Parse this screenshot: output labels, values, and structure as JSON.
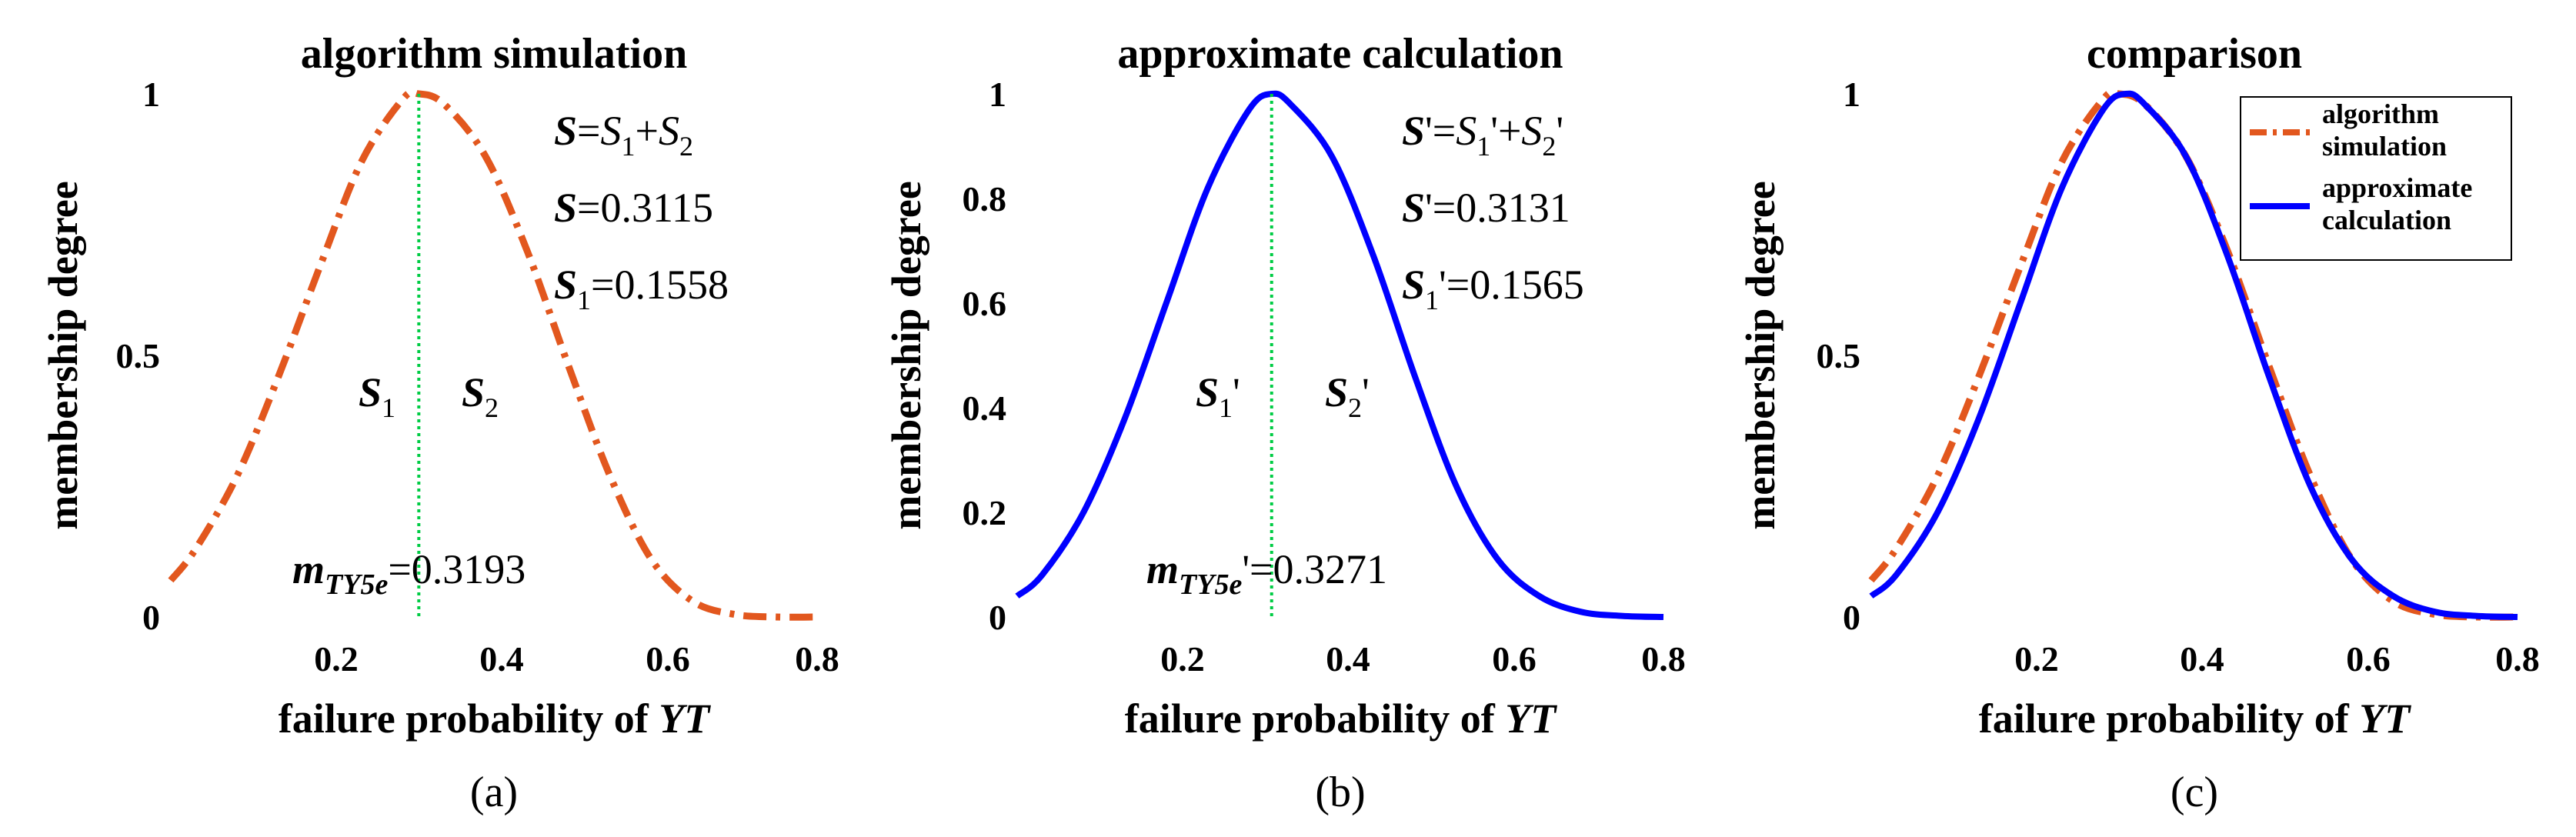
{
  "panels": [
    {
      "title": "algorithm simulation",
      "sublabel": "(a)",
      "xlabel_text": "failure probability of ",
      "xlabel_italic": "YT",
      "ylabel": "membership degree",
      "xticks": [
        "0.2",
        "0.4",
        "0.6",
        "0.8"
      ],
      "yticks": [
        "0",
        "0.5",
        "1"
      ],
      "annotations": {
        "line1": {
          "a": "S",
          "b": "=",
          "c": "S",
          "csub": "1",
          "d": "+",
          "e": "S",
          "esub": "2"
        },
        "line2": {
          "a": "S",
          "b": "=0.3115"
        },
        "line3": {
          "a": "S",
          "asub": "1",
          "b": "=0.1558"
        },
        "s1": {
          "a": "S",
          "sub": "1"
        },
        "s2": {
          "a": "S",
          "sub": "2"
        },
        "m": {
          "a": "m",
          "sub": "TY5e",
          "b": "=0.3193"
        }
      }
    },
    {
      "title": "approximate calculation",
      "sublabel": "(b)",
      "xlabel_text": "failure probability of ",
      "xlabel_italic": "YT",
      "ylabel": "membership degree",
      "xticks": [
        "0.2",
        "0.4",
        "0.6",
        "0.8"
      ],
      "yticks": [
        "0",
        "0.2",
        "0.4",
        "0.6",
        "0.8",
        "1"
      ],
      "annotations": {
        "line1": {
          "a": "S",
          "b": "'=",
          "c": "S",
          "csub": "1",
          "d": "'+",
          "e": "S",
          "esub": "2",
          "f": "'"
        },
        "line2": {
          "a": "S",
          "b": "'=0.3131"
        },
        "line3": {
          "a": "S",
          "asub": "1",
          "b": "'=0.1565"
        },
        "s1": {
          "a": "S",
          "sub": "1",
          "p": "'"
        },
        "s2": {
          "a": "S",
          "sub": "2",
          "p": "'"
        },
        "m": {
          "a": "m",
          "sub": "TY5e",
          "b": "'=0.3271"
        }
      }
    },
    {
      "title": "comparison",
      "sublabel": "(c)",
      "xlabel_text": "failure probability of ",
      "xlabel_italic": "YT",
      "ylabel": "membership degree",
      "xticks": [
        "0.2",
        "0.4",
        "0.6",
        "0.8"
      ],
      "yticks": [
        "0",
        "0.5",
        "1"
      ],
      "legend": [
        {
          "line1": "algorithm",
          "line2": "simulation",
          "color": "#e2571e",
          "style": "dashdot"
        },
        {
          "line1": "approximate",
          "line2": "calculation",
          "color": "#0000ff",
          "style": "solid"
        }
      ]
    }
  ],
  "chart_data": [
    {
      "type": "line",
      "title": "algorithm simulation",
      "xlabel": "failure probability of YT",
      "ylabel": "membership degree",
      "xlim": [
        0.02,
        0.8
      ],
      "ylim": [
        0,
        1
      ],
      "series": [
        {
          "color": "#e2571e",
          "style": "dashdot",
          "x": [
            0.02,
            0.05,
            0.1,
            0.15,
            0.2,
            0.25,
            0.3,
            0.3193,
            0.35,
            0.4,
            0.45,
            0.5,
            0.55,
            0.6,
            0.65,
            0.7,
            0.75,
            0.8
          ],
          "y": [
            0.07,
            0.13,
            0.27,
            0.46,
            0.67,
            0.87,
            0.99,
            1.0,
            0.98,
            0.88,
            0.7,
            0.48,
            0.27,
            0.11,
            0.03,
            0.005,
            0.0,
            0.0
          ]
        }
      ],
      "vline": {
        "x": 0.3193,
        "color": "#00cc44"
      }
    },
    {
      "type": "line",
      "title": "approximate calculation",
      "xlabel": "failure probability of YT",
      "ylabel": "membership degree",
      "xlim": [
        0.02,
        0.8
      ],
      "ylim": [
        0,
        1
      ],
      "series": [
        {
          "color": "#0000ff",
          "style": "solid",
          "x": [
            0.02,
            0.05,
            0.1,
            0.15,
            0.2,
            0.25,
            0.3,
            0.3271,
            0.35,
            0.4,
            0.45,
            0.5,
            0.55,
            0.6,
            0.65,
            0.7,
            0.75,
            0.8
          ],
          "y": [
            0.04,
            0.08,
            0.2,
            0.38,
            0.6,
            0.82,
            0.97,
            1.0,
            0.98,
            0.88,
            0.69,
            0.46,
            0.25,
            0.11,
            0.04,
            0.01,
            0.002,
            0.0
          ]
        }
      ],
      "vline": {
        "x": 0.3271,
        "color": "#00cc44"
      }
    },
    {
      "type": "line",
      "title": "comparison",
      "xlabel": "failure probability of YT",
      "ylabel": "membership degree",
      "xlim": [
        0.02,
        0.8
      ],
      "ylim": [
        0,
        1
      ],
      "series": [
        {
          "name": "algorithm simulation",
          "color": "#e2571e",
          "style": "dashdot",
          "x": [
            0.02,
            0.05,
            0.1,
            0.15,
            0.2,
            0.25,
            0.3,
            0.3193,
            0.35,
            0.4,
            0.45,
            0.5,
            0.55,
            0.6,
            0.65,
            0.7,
            0.75,
            0.8
          ],
          "y": [
            0.07,
            0.13,
            0.27,
            0.46,
            0.67,
            0.87,
            0.99,
            1.0,
            0.98,
            0.88,
            0.7,
            0.48,
            0.27,
            0.11,
            0.03,
            0.005,
            0.0,
            0.0
          ]
        },
        {
          "name": "approximate calculation",
          "color": "#0000ff",
          "style": "solid",
          "x": [
            0.02,
            0.05,
            0.1,
            0.15,
            0.2,
            0.25,
            0.3,
            0.3271,
            0.35,
            0.4,
            0.45,
            0.5,
            0.55,
            0.6,
            0.65,
            0.7,
            0.75,
            0.8
          ],
          "y": [
            0.04,
            0.08,
            0.2,
            0.38,
            0.6,
            0.82,
            0.97,
            1.0,
            0.98,
            0.88,
            0.69,
            0.46,
            0.25,
            0.11,
            0.04,
            0.01,
            0.002,
            0.0
          ]
        }
      ],
      "legend": "top-right"
    }
  ]
}
